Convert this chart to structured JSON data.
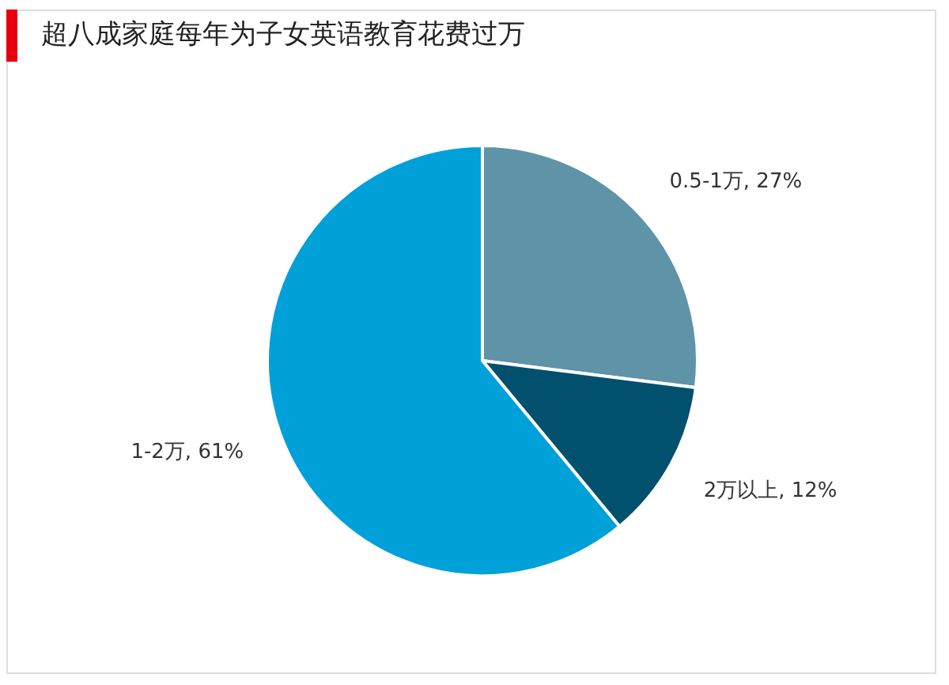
{
  "chart_data": {
    "type": "pie",
    "title": "超八成家庭每年为子女英语教育花费过万",
    "categories": [
      "0.5-1万",
      "2万以上",
      "1-2万"
    ],
    "values": [
      27,
      12,
      61
    ],
    "value_labels": [
      "27%",
      "12%",
      "61%"
    ],
    "colors": [
      "#5f93a8",
      "#00506e",
      "#00a0d8"
    ],
    "legend": false
  }
}
